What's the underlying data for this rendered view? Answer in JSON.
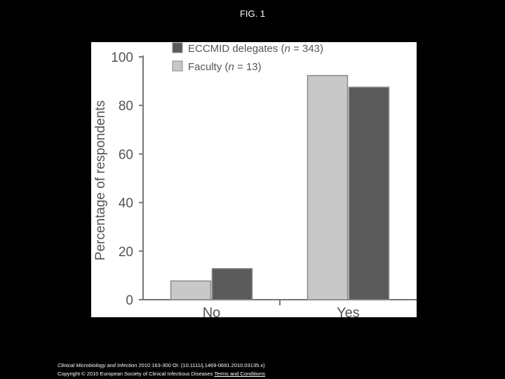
{
  "figure": {
    "title": "FIG. 1"
  },
  "chart_data": {
    "type": "bar",
    "title": "",
    "xlabel": "",
    "ylabel": "Percentage of respondents",
    "ylim": [
      0,
      100
    ],
    "yticks": [
      "0",
      "20",
      "40",
      "60",
      "80",
      "100"
    ],
    "categories": [
      "No",
      "Yes"
    ],
    "series": [
      {
        "name": "Faculty (n = 13)",
        "values": [
          7.7,
          92.3
        ],
        "color": "#c8c8c8"
      },
      {
        "name": "ECCMID delegates (n = 343)",
        "values": [
          12.8,
          87.5
        ],
        "color": "#5a5a5a"
      }
    ],
    "legend": {
      "placement": "top-left",
      "entries": [
        {
          "name": "ECCMID delegates (n = 343)",
          "color": "#5a5a5a"
        },
        {
          "name": "Faculty (n = 13)",
          "color": "#c8c8c8"
        }
      ]
    },
    "grid": false
  },
  "caption": {
    "journal": "Clinical Microbiology and Infection",
    "citation": " 2010 163-300 OI: (10.1111/j.1469-0691.2010.03135.x)",
    "copyright": "Copyright © 2010 European Society of Clinical Infectious Diseases",
    "terms_link": "Terms and Conditions"
  }
}
